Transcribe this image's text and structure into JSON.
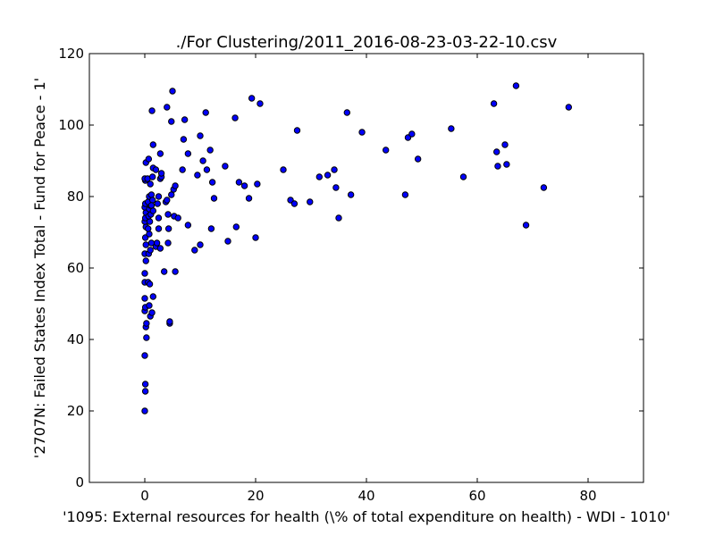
{
  "chart_data": {
    "type": "scatter",
    "title": "./For Clustering/2011_2016-08-23-03-22-10.csv",
    "xlabel": "'1095: External resources for health  (\\% of total expenditure on health) - WDI - 1010'",
    "ylabel": "'2707N: Failed States Index Total - Fund for Peace - 1'",
    "xlim": [
      -10,
      90
    ],
    "ylim": [
      0,
      120
    ],
    "xticks": [
      0,
      20,
      40,
      60,
      80
    ],
    "yticks": [
      0,
      20,
      40,
      60,
      80,
      100,
      120
    ],
    "grid": false,
    "marker_color": "#0000ff",
    "points": [
      [
        0.0,
        20.0
      ],
      [
        0.1,
        25.5
      ],
      [
        0.1,
        27.5
      ],
      [
        0.0,
        35.5
      ],
      [
        0.3,
        40.5
      ],
      [
        0.2,
        43.5
      ],
      [
        0.3,
        44.5
      ],
      [
        0.0,
        48.0
      ],
      [
        0.1,
        49.0
      ],
      [
        0.0,
        51.5
      ],
      [
        0.0,
        56.0
      ],
      [
        0.0,
        58.5
      ],
      [
        0.2,
        62.0
      ],
      [
        0.0,
        64.0
      ],
      [
        0.2,
        66.5
      ],
      [
        0.1,
        68.5
      ],
      [
        0.2,
        71.5
      ],
      [
        0.0,
        73.0
      ],
      [
        0.1,
        74.0
      ],
      [
        0.2,
        75.5
      ],
      [
        0.0,
        77.0
      ],
      [
        0.1,
        78.0
      ],
      [
        0.1,
        84.5
      ],
      [
        0.0,
        85.0
      ],
      [
        0.2,
        89.5
      ],
      [
        0.7,
        90.5
      ],
      [
        0.6,
        56.0
      ],
      [
        0.9,
        55.5
      ],
      [
        1.0,
        46.5
      ],
      [
        0.8,
        49.5
      ],
      [
        1.3,
        47.5
      ],
      [
        1.5,
        52.0
      ],
      [
        0.7,
        64.0
      ],
      [
        1.0,
        65.0
      ],
      [
        1.2,
        67.0
      ],
      [
        0.8,
        69.5
      ],
      [
        0.6,
        71.0
      ],
      [
        0.9,
        73.0
      ],
      [
        0.7,
        74.5
      ],
      [
        1.1,
        75.0
      ],
      [
        0.8,
        76.5
      ],
      [
        1.0,
        77.5
      ],
      [
        0.6,
        78.5
      ],
      [
        0.8,
        80.0
      ],
      [
        1.2,
        80.5
      ],
      [
        1.0,
        83.5
      ],
      [
        0.5,
        85.0
      ],
      [
        1.4,
        85.5
      ],
      [
        1.5,
        88.0
      ],
      [
        1.5,
        94.5
      ],
      [
        1.3,
        104.0
      ],
      [
        1.4,
        79.0
      ],
      [
        1.2,
        77.5
      ],
      [
        1.5,
        76.0
      ],
      [
        2.0,
        66.0
      ],
      [
        2.2,
        67.0
      ],
      [
        2.5,
        71.0
      ],
      [
        2.5,
        74.0
      ],
      [
        2.3,
        78.0
      ],
      [
        2.5,
        80.0
      ],
      [
        2.8,
        85.0
      ],
      [
        3.0,
        85.5
      ],
      [
        3.0,
        86.5
      ],
      [
        2.8,
        92.0
      ],
      [
        2.0,
        87.5
      ],
      [
        2.8,
        65.5
      ],
      [
        3.5,
        59.0
      ],
      [
        3.8,
        78.5
      ],
      [
        4.0,
        79.0
      ],
      [
        4.2,
        75.0
      ],
      [
        4.3,
        71.0
      ],
      [
        4.2,
        67.0
      ],
      [
        4.5,
        44.5
      ],
      [
        4.5,
        45.0
      ],
      [
        4.0,
        105.0
      ],
      [
        4.8,
        101.0
      ],
      [
        5.0,
        109.5
      ],
      [
        4.8,
        80.5
      ],
      [
        5.2,
        82.0
      ],
      [
        5.5,
        83.0
      ],
      [
        5.3,
        74.5
      ],
      [
        5.5,
        59.0
      ],
      [
        6.0,
        74.0
      ],
      [
        6.8,
        87.5
      ],
      [
        7.0,
        96.0
      ],
      [
        7.2,
        101.5
      ],
      [
        7.8,
        92.0
      ],
      [
        7.8,
        72.0
      ],
      [
        9.0,
        65.0
      ],
      [
        9.5,
        86.0
      ],
      [
        10.0,
        97.0
      ],
      [
        10.0,
        66.5
      ],
      [
        10.5,
        90.0
      ],
      [
        11.0,
        103.5
      ],
      [
        11.2,
        87.5
      ],
      [
        11.8,
        93.0
      ],
      [
        12.0,
        71.0
      ],
      [
        12.2,
        84.0
      ],
      [
        12.5,
        79.5
      ],
      [
        14.5,
        88.5
      ],
      [
        15.0,
        67.5
      ],
      [
        16.3,
        102.0
      ],
      [
        16.5,
        71.5
      ],
      [
        17.0,
        84.0
      ],
      [
        18.0,
        83.0
      ],
      [
        18.8,
        79.5
      ],
      [
        19.3,
        107.5
      ],
      [
        20.0,
        68.5
      ],
      [
        20.3,
        83.5
      ],
      [
        20.8,
        106.0
      ],
      [
        25.0,
        87.5
      ],
      [
        26.3,
        79.0
      ],
      [
        27.0,
        78.0
      ],
      [
        27.5,
        98.5
      ],
      [
        29.8,
        78.5
      ],
      [
        31.5,
        85.5
      ],
      [
        33.0,
        86.0
      ],
      [
        34.2,
        87.5
      ],
      [
        34.5,
        82.5
      ],
      [
        35.0,
        74.0
      ],
      [
        36.5,
        103.5
      ],
      [
        37.2,
        80.5
      ],
      [
        39.2,
        98.0
      ],
      [
        43.5,
        93.0
      ],
      [
        47.0,
        80.5
      ],
      [
        47.5,
        96.5
      ],
      [
        48.2,
        97.5
      ],
      [
        49.3,
        90.5
      ],
      [
        55.3,
        99.0
      ],
      [
        57.5,
        85.5
      ],
      [
        63.0,
        106.0
      ],
      [
        63.5,
        92.5
      ],
      [
        63.7,
        88.5
      ],
      [
        65.0,
        94.5
      ],
      [
        65.3,
        89.0
      ],
      [
        67.0,
        111.0
      ],
      [
        68.8,
        72.0
      ],
      [
        72.0,
        82.5
      ],
      [
        76.5,
        105.0
      ]
    ]
  }
}
